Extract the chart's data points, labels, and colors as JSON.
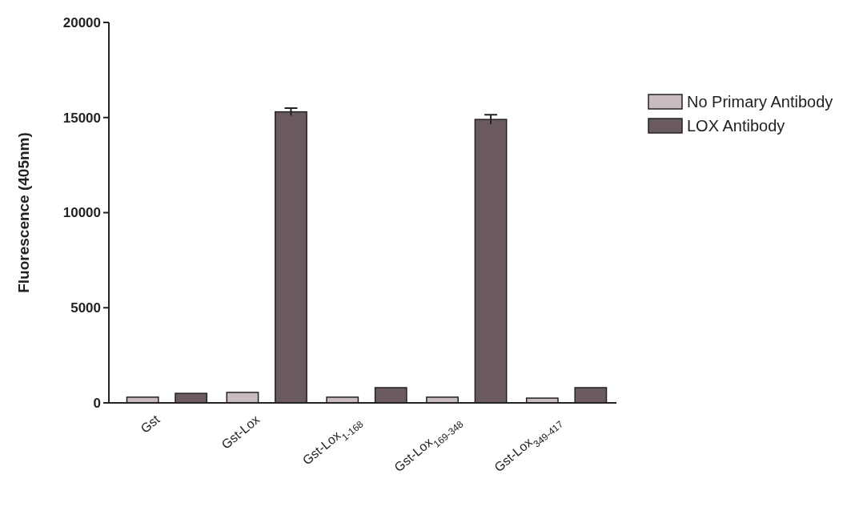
{
  "chart_data": {
    "type": "bar",
    "ylabel": "Fluorescence (405nm)",
    "categories": [
      "Gst",
      "Gst-Lox",
      "Gst-Lox$_{1-168}$",
      "Gst-Lox$_{169-348}$",
      "Gst-Lox$_{349-417}$"
    ],
    "series": [
      {
        "name": "No Primary Antibody",
        "color": "#c9bcc0",
        "values": [
          300,
          550,
          300,
          300,
          250
        ]
      },
      {
        "name": "LOX Antibody",
        "color": "#6b5b61",
        "values": [
          500,
          15300,
          800,
          14900,
          800
        ],
        "errors": [
          null,
          200,
          null,
          250,
          null
        ]
      }
    ],
    "ylim": [
      0,
      20000
    ],
    "yticks": [
      0,
      5000,
      10000,
      15000,
      20000
    ],
    "legend": "top right"
  }
}
